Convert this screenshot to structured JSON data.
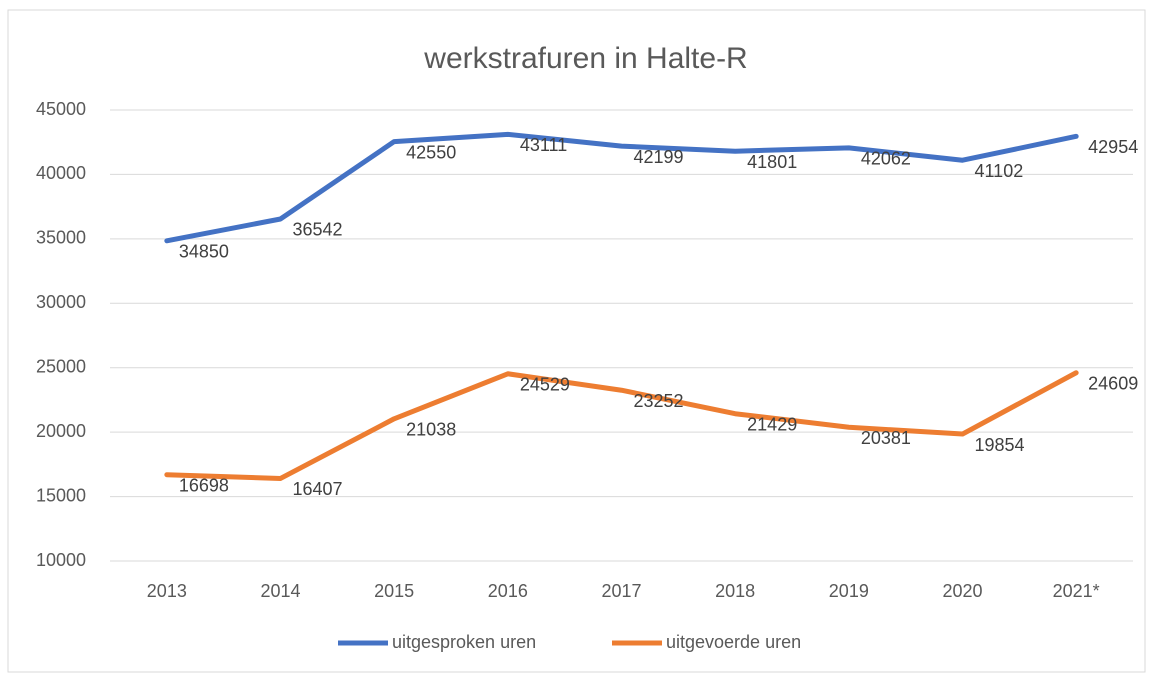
{
  "chart_data": {
    "type": "line",
    "title": "werkstrafuren in Halte-R",
    "categories": [
      "2013",
      "2014",
      "2015",
      "2016",
      "2017",
      "2018",
      "2019",
      "2020",
      "2021*"
    ],
    "series": [
      {
        "name": "uitgesproken uren",
        "color": "#4472c4",
        "values": [
          34850,
          36542,
          42550,
          43111,
          42199,
          41801,
          42062,
          41102,
          42954
        ]
      },
      {
        "name": "uitgevoerde uren",
        "color": "#ed7d31",
        "values": [
          16698,
          16407,
          21038,
          24529,
          23252,
          21429,
          20381,
          19854,
          24609
        ]
      }
    ],
    "ylim": [
      10000,
      45000
    ],
    "yticks": [
      10000,
      15000,
      20000,
      25000,
      30000,
      35000,
      40000,
      45000
    ],
    "grid": true,
    "legend": "bottom"
  }
}
